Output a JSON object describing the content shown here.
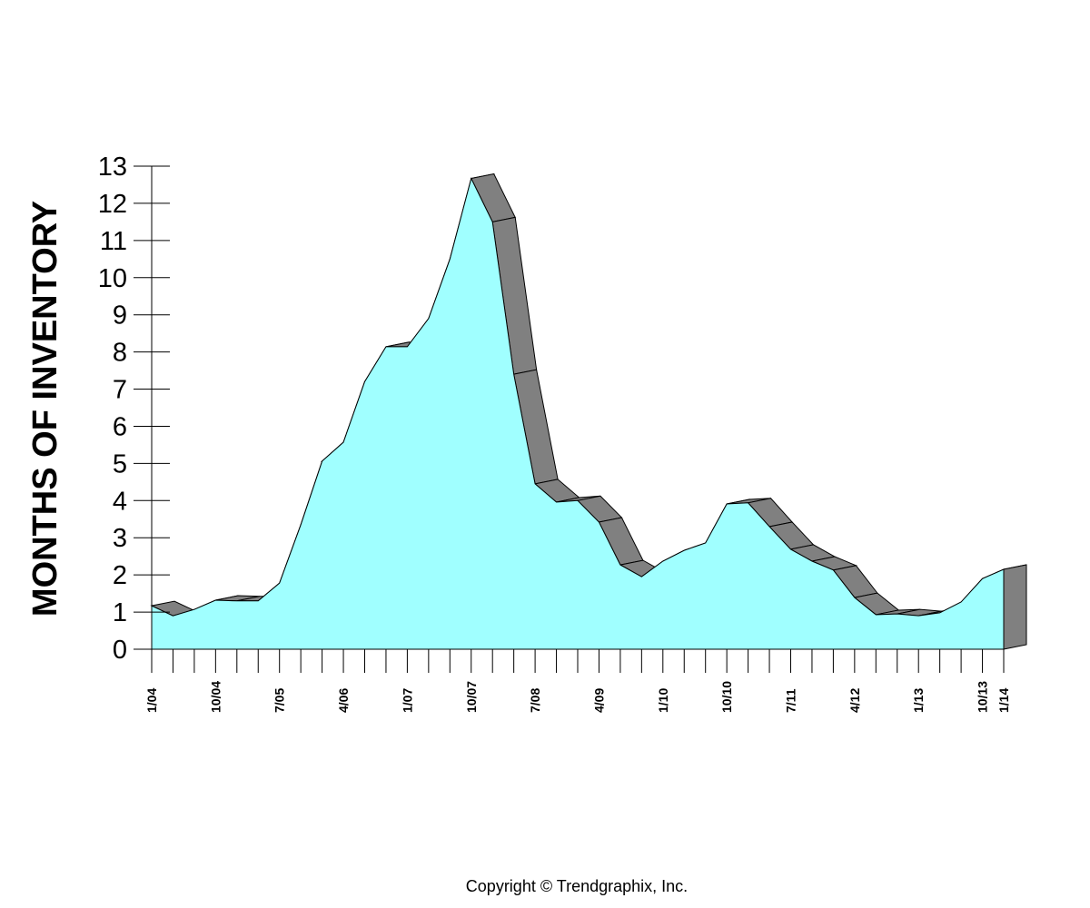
{
  "chart_data": {
    "type": "area",
    "title": "",
    "xlabel": "",
    "ylabel": "MONTHS OF INVENTORY",
    "ylim": [
      0,
      13
    ],
    "yticks": [
      "0",
      "1",
      "2",
      "3",
      "4",
      "5",
      "6",
      "7",
      "8",
      "9",
      "10",
      "11",
      "12",
      "13"
    ],
    "x_labels": [
      {
        "index": 0,
        "label": "1/04"
      },
      {
        "index": 3,
        "label": "10/04"
      },
      {
        "index": 6,
        "label": "7/05"
      },
      {
        "index": 9,
        "label": "4/06"
      },
      {
        "index": 12,
        "label": "1/07"
      },
      {
        "index": 15,
        "label": "10/07"
      },
      {
        "index": 18,
        "label": "7/08"
      },
      {
        "index": 21,
        "label": "4/09"
      },
      {
        "index": 24,
        "label": "1/10"
      },
      {
        "index": 27,
        "label": "10/10"
      },
      {
        "index": 30,
        "label": "7/11"
      },
      {
        "index": 33,
        "label": "4/12"
      },
      {
        "index": 36,
        "label": "1/13"
      },
      {
        "index": 39,
        "label": "10/13"
      },
      {
        "index": 40,
        "label": "1/14"
      }
    ],
    "series": [
      {
        "name": "Months of Inventory",
        "color": "#a0ffff",
        "values": [
          1.17,
          0.9,
          1.07,
          1.32,
          1.3,
          1.3,
          1.78,
          3.35,
          5.06,
          5.57,
          7.2,
          8.14,
          8.14,
          8.9,
          10.5,
          12.67,
          11.5,
          7.4,
          4.45,
          3.96,
          4.0,
          3.42,
          2.27,
          1.95,
          2.37,
          2.66,
          2.86,
          3.91,
          3.94,
          3.3,
          2.69,
          2.37,
          2.13,
          1.39,
          0.93,
          0.95,
          0.9,
          0.98,
          1.27,
          1.9,
          2.15
        ]
      }
    ],
    "grid": false
  },
  "colors": {
    "area": "#a0ffff",
    "depth": "#808080"
  },
  "footer": {
    "copyright": "Copyright © Trendgraphix, Inc."
  }
}
